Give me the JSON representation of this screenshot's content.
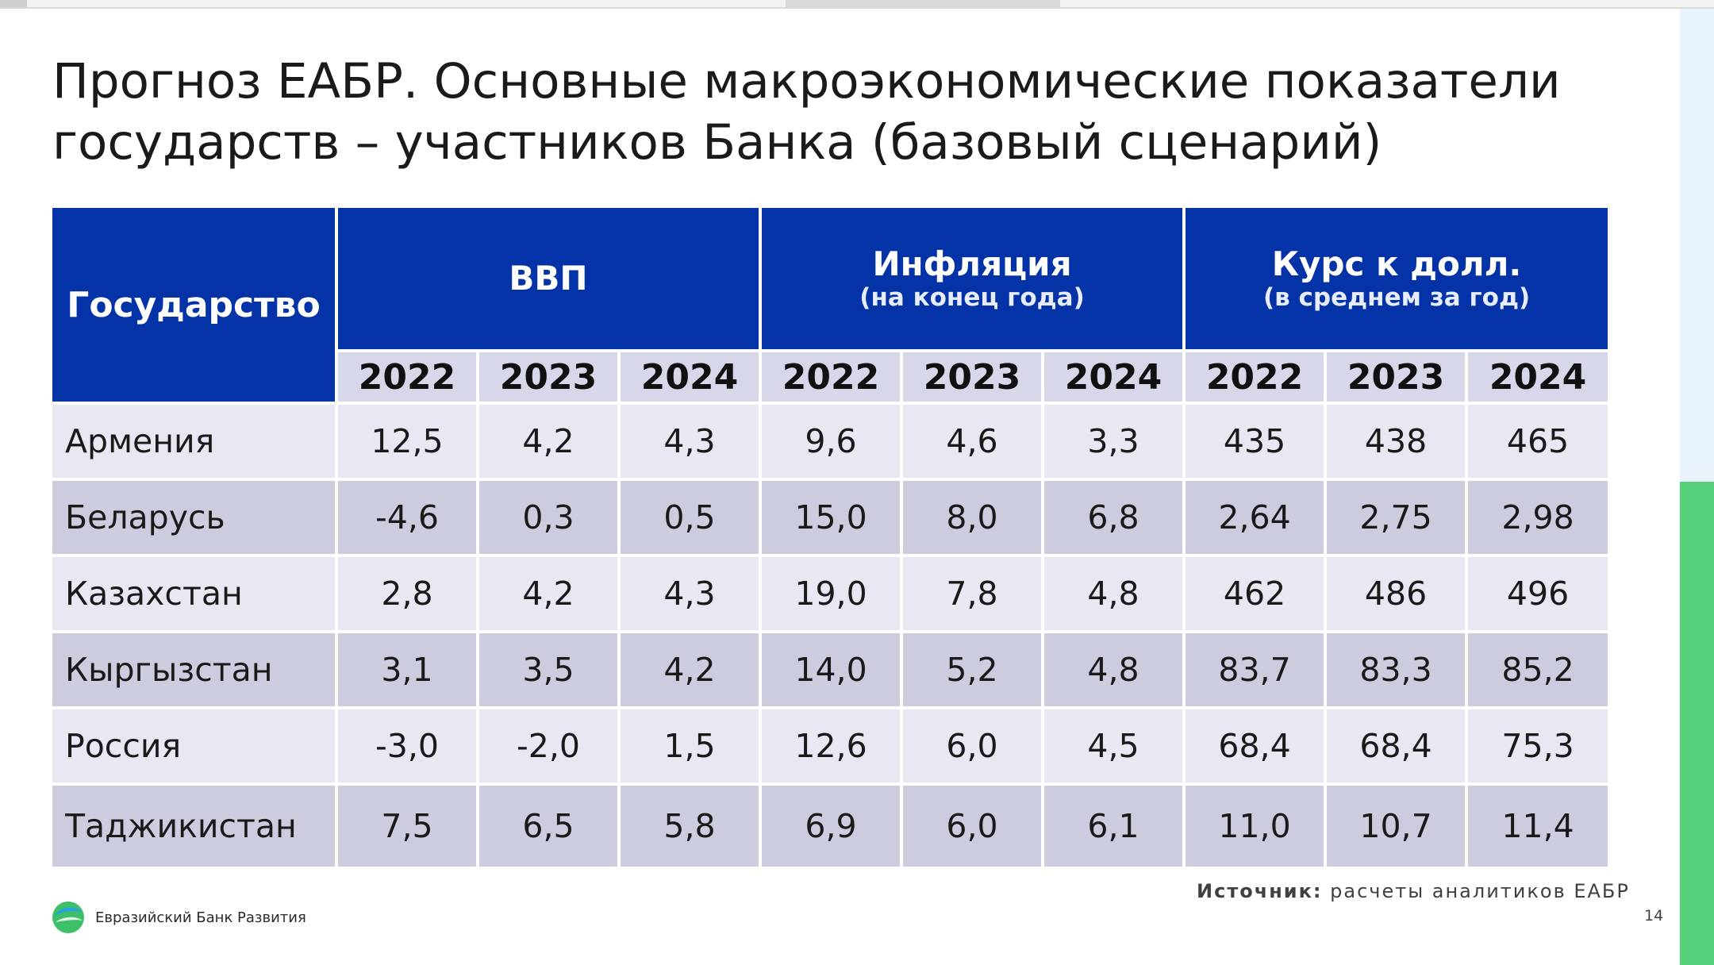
{
  "slide": {
    "title_line1": "Прогноз ЕАБР. Основные макроэкономические показатели",
    "title_line2": "государств – участников Банка (базовый сценарий)",
    "page_number": "14"
  },
  "table": {
    "state_header": "Государство",
    "groups": [
      {
        "title": "ВВП",
        "subtitle": ""
      },
      {
        "title": "Инфляция",
        "subtitle": "(на конец года)"
      },
      {
        "title": "Курс к долл.",
        "subtitle": "(в среднем за год)"
      }
    ],
    "years": [
      "2022",
      "2023",
      "2024",
      "2022",
      "2023",
      "2024",
      "2022",
      "2023",
      "2024"
    ],
    "rows": [
      {
        "country": "Армения",
        "values": [
          "12,5",
          "4,2",
          "4,3",
          "9,6",
          "4,6",
          "3,3",
          "435",
          "438",
          "465"
        ]
      },
      {
        "country": "Беларусь",
        "values": [
          "-4,6",
          "0,3",
          "0,5",
          "15,0",
          "8,0",
          "6,8",
          "2,64",
          "2,75",
          "2,98"
        ]
      },
      {
        "country": "Казахстан",
        "values": [
          "2,8",
          "4,2",
          "4,3",
          "19,0",
          "7,8",
          "4,8",
          "462",
          "486",
          "496"
        ]
      },
      {
        "country": "Кыргызстан",
        "values": [
          "3,1",
          "3,5",
          "4,2",
          "14,0",
          "5,2",
          "4,8",
          "83,7",
          "83,3",
          "85,2"
        ]
      },
      {
        "country": "Россия",
        "values": [
          "-3,0",
          "-2,0",
          "1,5",
          "12,6",
          "6,0",
          "4,5",
          "68,4",
          "68,4",
          "75,3"
        ]
      },
      {
        "country": "Таджикистан",
        "values": [
          "7,5",
          "6,5",
          "5,8",
          "6,9",
          "6,0",
          "6,1",
          "11,0",
          "10,7",
          "11,4"
        ]
      }
    ]
  },
  "source": {
    "label": "Источник:",
    "text": "расчеты аналитиков ЕАБР"
  },
  "logo": {
    "text": "Евразийский Банк Развития",
    "icon": "edb-logo-icon"
  },
  "colors": {
    "header_blue": "#0433a8",
    "row_light": "#e8e8f2",
    "row_dark": "#ccccdf",
    "accent_green": "#57d07a"
  }
}
